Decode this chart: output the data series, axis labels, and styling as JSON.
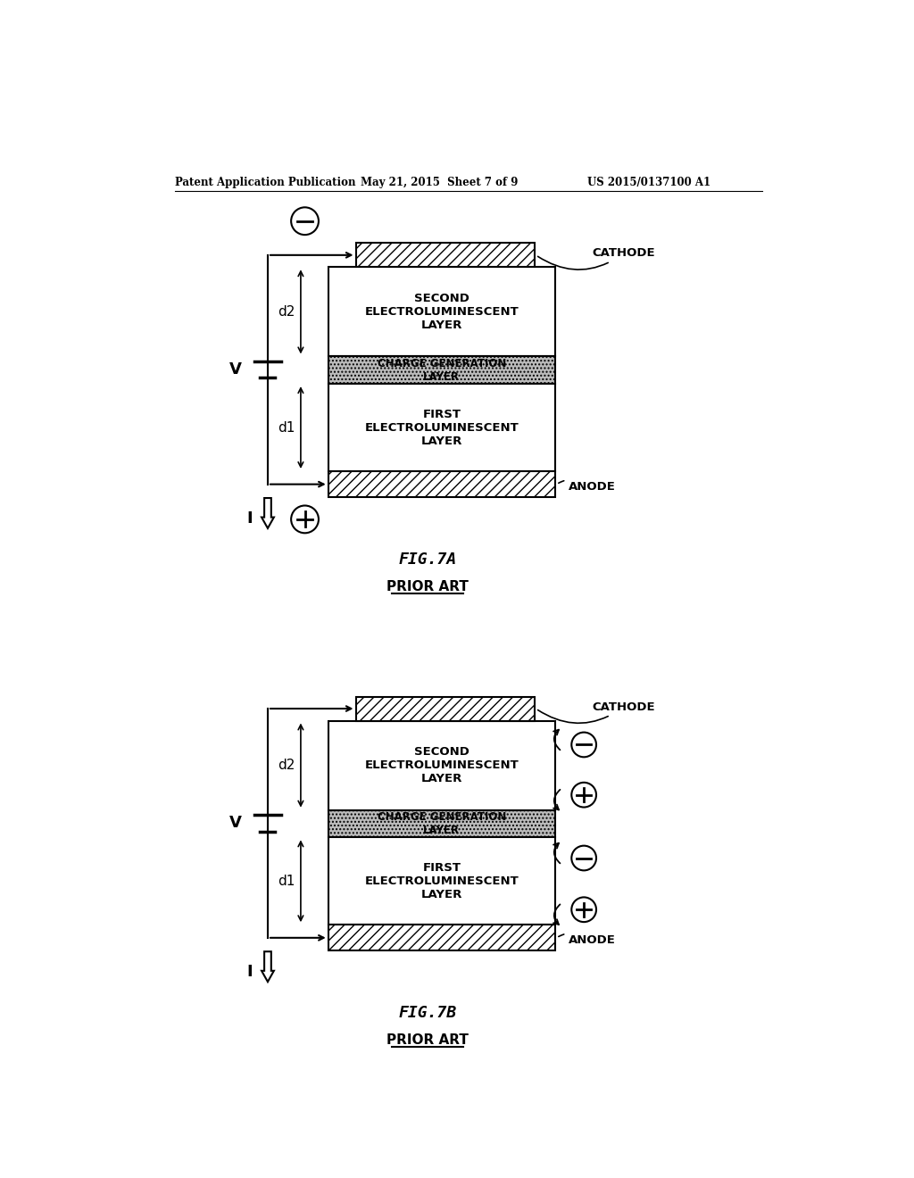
{
  "header_left": "Patent Application Publication",
  "header_center": "May 21, 2015  Sheet 7 of 9",
  "header_right": "US 2015/0137100 A1",
  "fig7a_title": "FIG.7A",
  "fig7b_title": "FIG.7B",
  "prior_art": "PRIOR ART",
  "cathode_label": "CATHODE",
  "anode_label": "ANODE",
  "second_el_label": "SECOND\nELECTROLUMINESCENT\nLAYER",
  "charge_gen_label": "CHARGE GENERATION\nLAYER",
  "first_el_label": "FIRST\nELECTROLUMINESCENT\nLAYER",
  "d1_label": "d1",
  "d2_label": "d2",
  "V_label": "V",
  "I_label": "I",
  "bg_color": "#ffffff"
}
